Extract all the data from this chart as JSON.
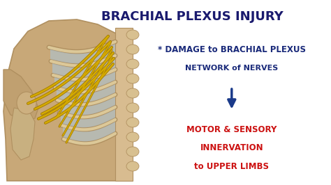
{
  "background_color": "#ffffff",
  "title": "BRACHIAL PLEXUS INJURY",
  "title_color": "#1a1a6e",
  "title_fontsize": 13,
  "line1": "* DAMAGE to BRACHIAL PLEXUS",
  "line2": "NETWORK of NERVES",
  "text_color": "#1a2a7a",
  "line1_fontsize": 8.5,
  "line2_fontsize": 8.0,
  "arrow_color": "#1a3a8a",
  "red_line1": "MOTOR & SENSORY",
  "red_line2": "INNERVATION",
  "red_line3": "to UPPER LIMBS",
  "red_color": "#cc1111",
  "red_fontsize": 8.5,
  "skin_color": "#c8a878",
  "skin_edge": "#b09060",
  "rib_fill": "#dcc898",
  "rib_edge": "#b09060",
  "blue_fill": "#aac8e0",
  "nerve_color": "#d4aa00",
  "spine_color": "#d8bc90"
}
